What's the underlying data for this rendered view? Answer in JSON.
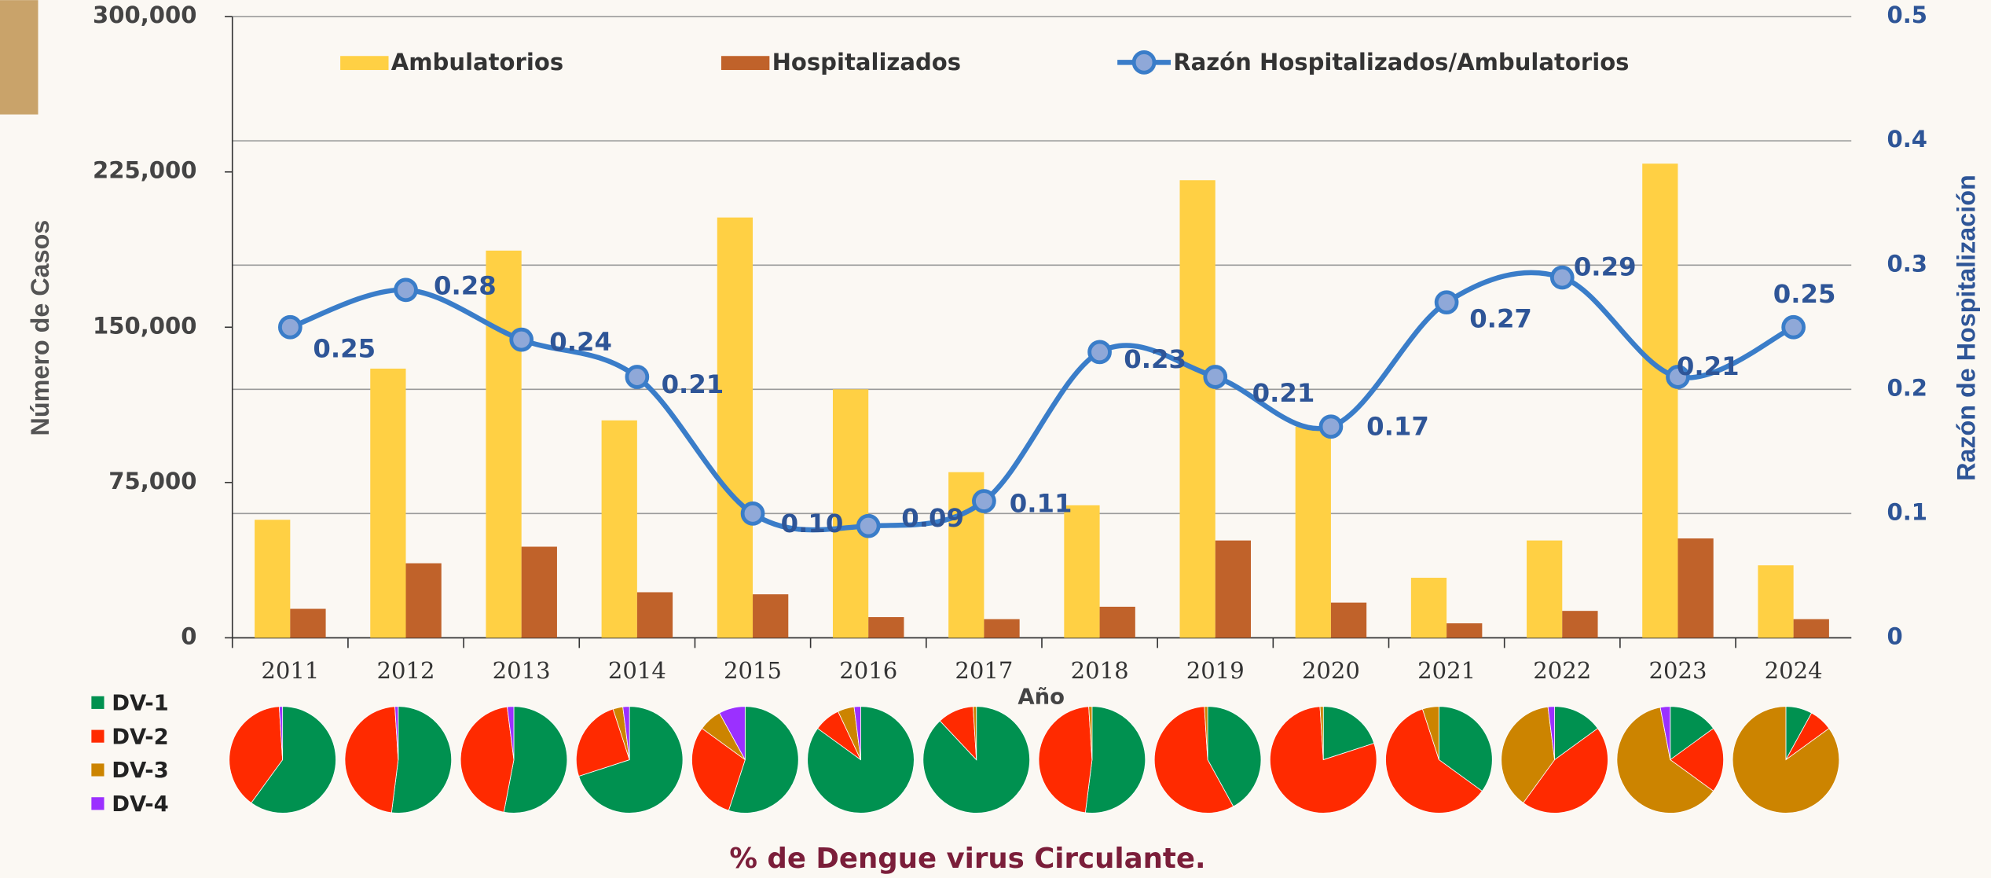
{
  "chart_data": [
    {
      "type": "bar",
      "x_label": "Año",
      "y_label": "Número de Casos",
      "y2_label": "Razón de Hospitalización",
      "categories": [
        "2011",
        "2012",
        "2013",
        "2014",
        "2015",
        "2016",
        "2017",
        "2018",
        "2019",
        "2020",
        "2021",
        "2022",
        "2023",
        "2024"
      ],
      "series": [
        {
          "name": "Ambulatorios",
          "type": "bar",
          "color": "#ffd044",
          "values": [
            57000,
            130000,
            187000,
            105000,
            203000,
            120000,
            80000,
            64000,
            221000,
            102000,
            29000,
            47000,
            229000,
            35000
          ]
        },
        {
          "name": "Hospitalizados",
          "type": "bar",
          "color": "#c0622a",
          "values": [
            14000,
            36000,
            44000,
            22000,
            21000,
            10000,
            9000,
            15000,
            47000,
            17000,
            7000,
            13000,
            48000,
            9000
          ]
        },
        {
          "name": "Razón Hospitalizados/Ambulatorios",
          "type": "line",
          "axis": "y2",
          "color": "#3a7dc9",
          "values": [
            0.25,
            0.28,
            0.24,
            0.21,
            0.1,
            0.09,
            0.11,
            0.23,
            0.21,
            0.17,
            0.27,
            0.29,
            0.21,
            0.25
          ],
          "value_labels": [
            "0.25",
            "0.28",
            "0.24",
            "0.21",
            "0.10",
            "0.09",
            "0.11",
            "0.23",
            "0.21",
            "0.17",
            "0.27",
            "0.29",
            "0.21",
            "0.25"
          ]
        }
      ],
      "ylim": [
        0,
        300000
      ],
      "yticks": [
        0,
        {
          "value": 75000,
          "label": "75,000"
        },
        {
          "value": 150000,
          "label": "150,000"
        },
        {
          "value": 225000,
          "label": "225,000"
        },
        {
          "value": 300000,
          "label": "300,000"
        }
      ],
      "y2lim": [
        0,
        0.5
      ],
      "y2ticks": [
        0,
        0.1,
        0.2,
        0.3,
        0.4,
        0.5
      ],
      "grid": true,
      "legend": "top"
    },
    {
      "type": "pie",
      "title": "% de Dengue virus Circulante.",
      "legend": "left",
      "series": [
        {
          "name": "DV-1",
          "color": "#009150",
          "values": [
            60,
            52,
            53,
            70,
            55,
            85,
            88,
            52,
            42,
            20,
            35,
            15,
            15,
            8
          ]
        },
        {
          "name": "DV-2",
          "color": "#ff2a00",
          "values": [
            39,
            47,
            45,
            25,
            30,
            8,
            11,
            47,
            57,
            79,
            60,
            45,
            20,
            7
          ]
        },
        {
          "name": "DV-3",
          "color": "#cc8400",
          "values": [
            0,
            0,
            0,
            3,
            7,
            5,
            1,
            1,
            1,
            1,
            5,
            38,
            62,
            85
          ]
        },
        {
          "name": "DV-4",
          "color": "#9b30ff",
          "values": [
            1,
            1,
            2,
            2,
            8,
            2,
            0,
            0,
            0,
            0,
            0,
            2,
            3,
            0
          ]
        }
      ]
    }
  ]
}
